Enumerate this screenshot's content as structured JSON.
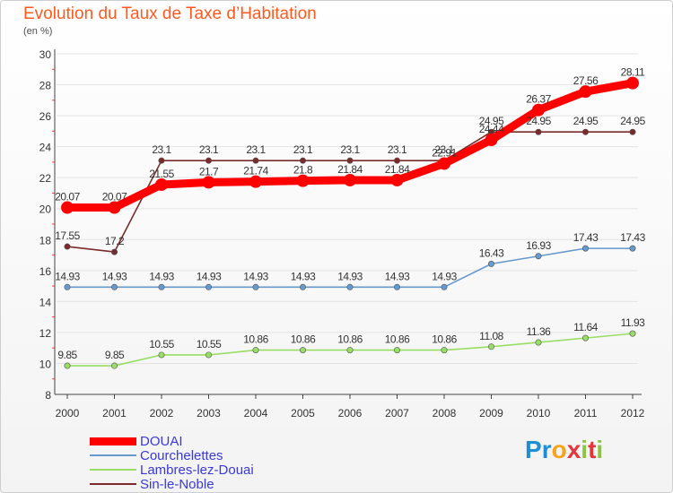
{
  "header": {
    "title": "Evolution du Taux de Taxe d’Habitation",
    "subtitle": "(en %)"
  },
  "logo": {
    "letters": [
      "P",
      "r",
      "o",
      "x",
      "i",
      "t",
      "i"
    ],
    "colors": [
      "#1e8fd6",
      "#1e8fd6",
      "#f7a31b",
      "#e5373b",
      "#8cc63e",
      "#e5373b",
      "#8cc63e"
    ]
  },
  "chart_data": {
    "type": "line",
    "title": "Evolution du Taux de Taxe d’Habitation",
    "subtitle": "(en %)",
    "xlabel": "",
    "ylabel": "",
    "x": [
      "2000",
      "2001",
      "2002",
      "2003",
      "2004",
      "2005",
      "2006",
      "2007",
      "2008",
      "2009",
      "2010",
      "2011",
      "2012"
    ],
    "ylim": [
      8,
      30
    ],
    "yticks": [
      "8",
      "10",
      "12",
      "14",
      "16",
      "18",
      "20",
      "22",
      "24",
      "26",
      "28",
      "30"
    ],
    "grid": "horizontal",
    "legend_position": "bottom-left",
    "series": [
      {
        "name": "DOUAI",
        "color": "#ff0000",
        "values": [
          20.07,
          20.07,
          21.55,
          21.7,
          21.74,
          21.8,
          21.84,
          21.84,
          22.91,
          24.44,
          26.37,
          27.56,
          28.11
        ],
        "labels": [
          "20.07",
          "20.07",
          "21.55",
          "21.7",
          "21.74",
          "21.8",
          "21.84",
          "21.84",
          "22.91",
          "24.44",
          "26.37",
          "27.56",
          "28.11"
        ]
      },
      {
        "name": "Courchelettes",
        "color": "#6699cc",
        "values": [
          14.93,
          14.93,
          14.93,
          14.93,
          14.93,
          14.93,
          14.93,
          14.93,
          14.93,
          16.43,
          16.93,
          17.43,
          17.43
        ],
        "labels": [
          "14.93",
          "14.93",
          "14.93",
          "14.93",
          "14.93",
          "14.93",
          "14.93",
          "14.93",
          "14.93",
          "16.43",
          "16.93",
          "17.43",
          "17.43"
        ]
      },
      {
        "name": "Lambres-lez-Douai",
        "color": "#99dd66",
        "values": [
          9.85,
          9.85,
          10.55,
          10.55,
          10.86,
          10.86,
          10.86,
          10.86,
          10.86,
          11.08,
          11.36,
          11.64,
          11.93
        ],
        "labels": [
          "9.85",
          "9.85",
          "10.55",
          "10.55",
          "10.86",
          "10.86",
          "10.86",
          "10.86",
          "10.86",
          "11.08",
          "11.36",
          "11.64",
          "11.93"
        ]
      },
      {
        "name": "Sin-le-Noble",
        "color": "#7a2a2a",
        "values": [
          17.55,
          17.2,
          23.1,
          23.1,
          23.1,
          23.1,
          23.1,
          23.1,
          23.1,
          24.95,
          24.95,
          24.95,
          24.95
        ],
        "labels": [
          "17.55",
          "17.2",
          "23.1",
          "23.1",
          "23.1",
          "23.1",
          "23.1",
          "23.1",
          "23.1",
          "24.95",
          "24.95",
          "24.95",
          "24.95"
        ]
      }
    ]
  }
}
